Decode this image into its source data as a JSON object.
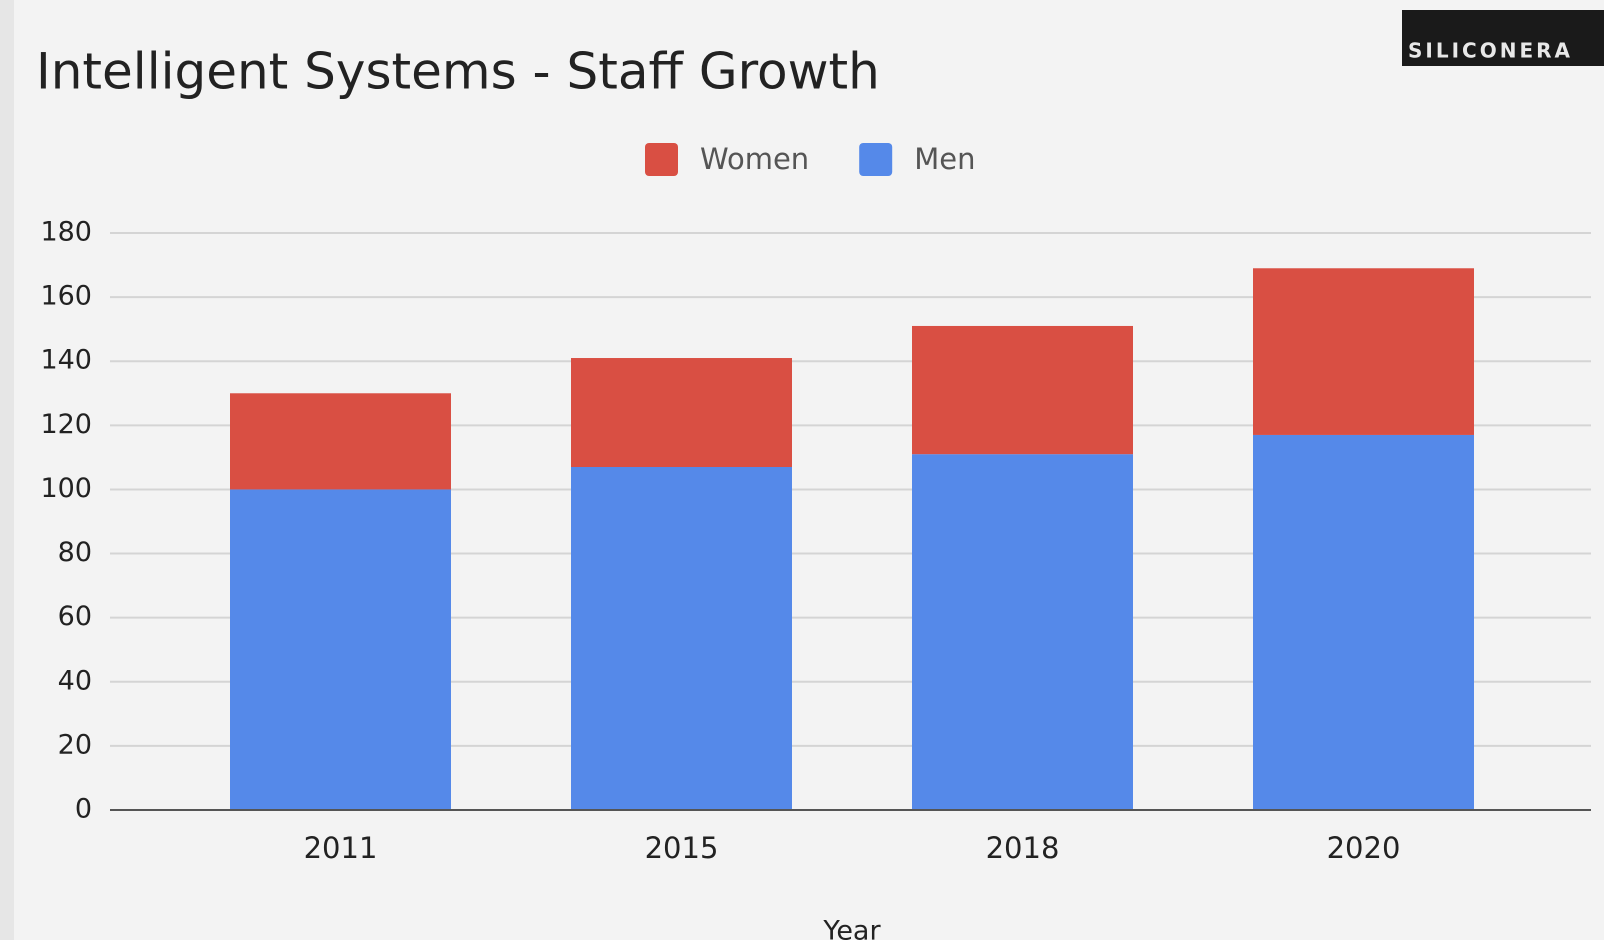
{
  "chart_data": {
    "type": "stacked_bar",
    "title": "Intelligent Systems - Staff Growth",
    "watermark": "SILICONERA",
    "x_label": "Year",
    "categories": [
      "2011",
      "2015",
      "2018",
      "2020"
    ],
    "series": [
      {
        "name": "Women",
        "color": "#d94f43",
        "values": [
          30,
          34,
          40,
          52
        ]
      },
      {
        "name": "Men",
        "color": "#5589e9",
        "values": [
          100,
          107,
          111,
          117
        ]
      }
    ],
    "ylim": [
      0,
      180
    ],
    "yticks": [
      0,
      20,
      40,
      60,
      80,
      100,
      120,
      140,
      160,
      180
    ],
    "grid": true,
    "legend": "top"
  }
}
